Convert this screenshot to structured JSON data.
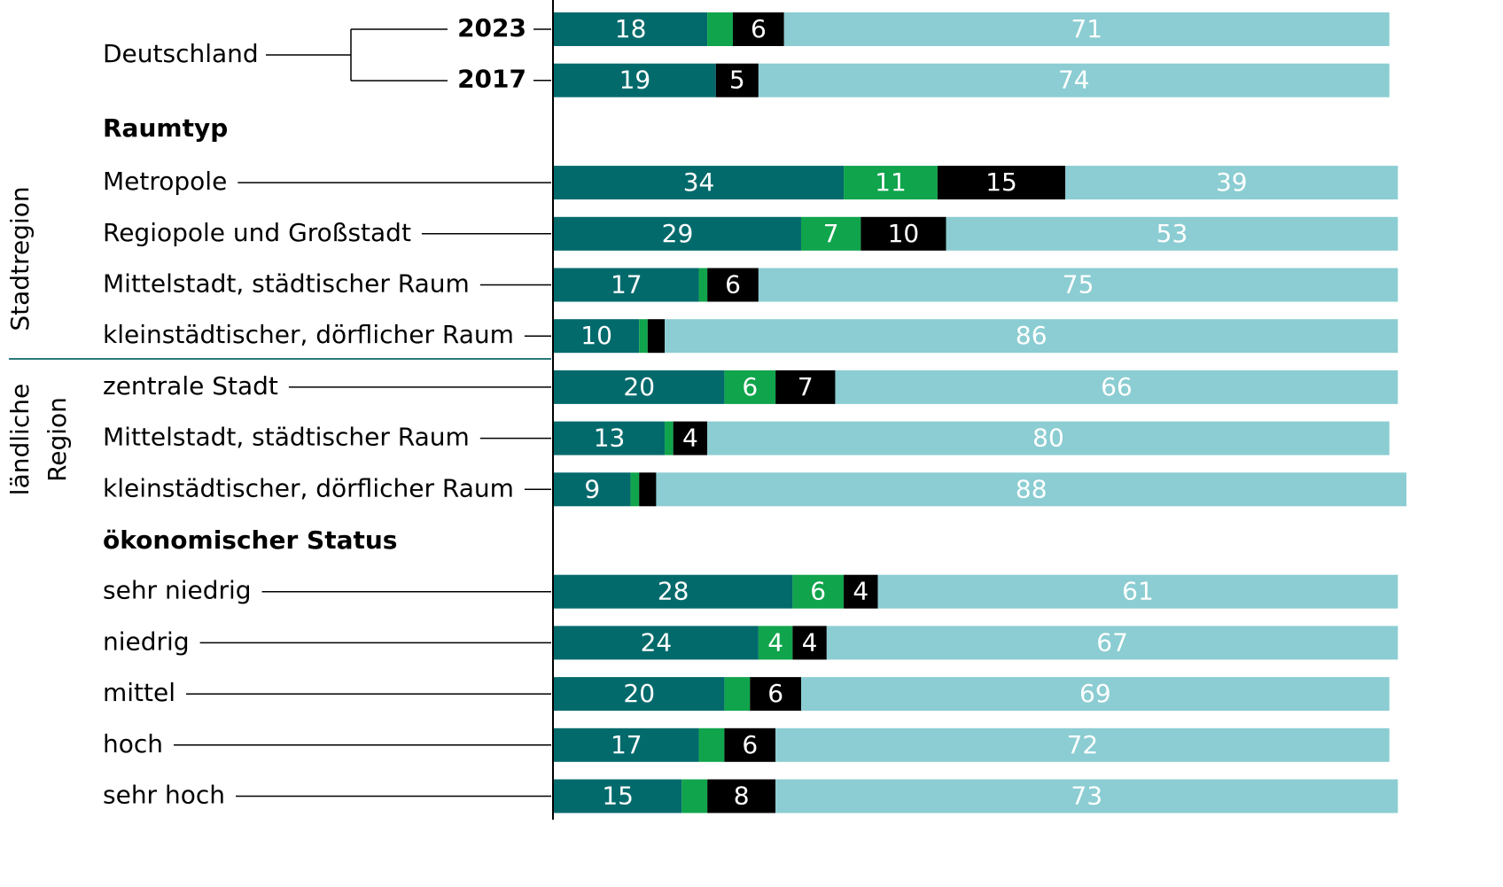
{
  "chart_data": {
    "type": "stacked-bar-horizontal",
    "group_label": "Deutschland",
    "headings": [
      "Raumtyp",
      "ökonomischer Status"
    ],
    "regions": [
      "Stadtregion",
      "ländliche",
      "Region"
    ],
    "categories": [
      "2023",
      "2017",
      "Metropole",
      "Regiopole und Großstadt",
      "Mittelstadt, städtischer Raum",
      "kleinstädtischer, dörflicher Raum",
      "zentrale Stadt",
      "Mittelstadt, städtischer Raum",
      "kleinstädtischer, dörflicher Raum",
      "sehr niedrig",
      "niedrig",
      "mittel",
      "hoch",
      "sehr hoch"
    ],
    "xlim": [
      0,
      100
    ],
    "series": [
      {
        "color": "#036a6c",
        "values": [
          18,
          19,
          34,
          29,
          17,
          10,
          20,
          13,
          9,
          28,
          24,
          20,
          17,
          15
        ]
      },
      {
        "color": "#10a44c",
        "values": [
          3,
          null,
          11,
          7,
          1,
          1,
          6,
          1,
          1,
          6,
          4,
          3,
          3,
          3
        ]
      },
      {
        "color": "#000000",
        "values": [
          6,
          5,
          15,
          10,
          6,
          2,
          7,
          4,
          2,
          4,
          4,
          6,
          6,
          8
        ]
      },
      {
        "color": "#8bcdd2",
        "values": [
          71,
          74,
          39,
          53,
          75,
          86,
          66,
          80,
          88,
          61,
          67,
          69,
          72,
          73
        ]
      }
    ]
  }
}
